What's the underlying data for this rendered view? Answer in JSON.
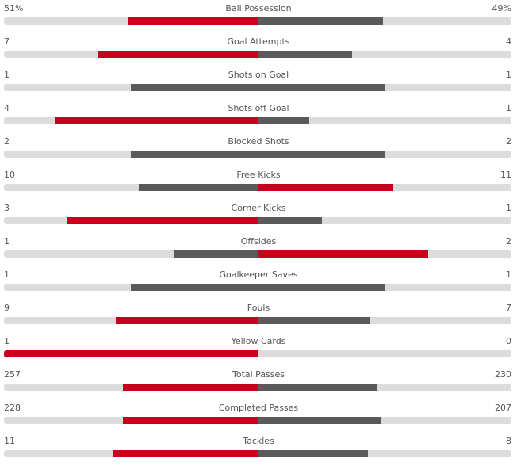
{
  "colors": {
    "winner": "#c8001e",
    "other": "#5a5a5a",
    "track": "#dcdcdc"
  },
  "stats": [
    {
      "name": "Ball Possession",
      "home": "51%",
      "away": "49%",
      "home_value": 51,
      "away_value": 49,
      "home_fill": 0.51,
      "away_fill": 0.49,
      "leader": "home"
    },
    {
      "name": "Goal Attempts",
      "home": "7",
      "away": "4",
      "home_value": 7,
      "away_value": 4,
      "home_fill": 0.63,
      "away_fill": 0.37,
      "leader": "home"
    },
    {
      "name": "Shots on Goal",
      "home": "1",
      "away": "1",
      "home_value": 1,
      "away_value": 1,
      "home_fill": 0.5,
      "away_fill": 0.5,
      "leader": "none"
    },
    {
      "name": "Shots off Goal",
      "home": "4",
      "away": "1",
      "home_value": 4,
      "away_value": 1,
      "home_fill": 0.8,
      "away_fill": 0.2,
      "leader": "home"
    },
    {
      "name": "Blocked Shots",
      "home": "2",
      "away": "2",
      "home_value": 2,
      "away_value": 2,
      "home_fill": 0.5,
      "away_fill": 0.5,
      "leader": "none"
    },
    {
      "name": "Free Kicks",
      "home": "10",
      "away": "11",
      "home_value": 10,
      "away_value": 11,
      "home_fill": 0.47,
      "away_fill": 0.53,
      "leader": "away"
    },
    {
      "name": "Corner Kicks",
      "home": "3",
      "away": "1",
      "home_value": 3,
      "away_value": 1,
      "home_fill": 0.75,
      "away_fill": 0.25,
      "leader": "home"
    },
    {
      "name": "Offsides",
      "home": "1",
      "away": "2",
      "home_value": 1,
      "away_value": 2,
      "home_fill": 0.33,
      "away_fill": 0.67,
      "leader": "away"
    },
    {
      "name": "Goalkeeper Saves",
      "home": "1",
      "away": "1",
      "home_value": 1,
      "away_value": 1,
      "home_fill": 0.5,
      "away_fill": 0.5,
      "leader": "none"
    },
    {
      "name": "Fouls",
      "home": "9",
      "away": "7",
      "home_value": 9,
      "away_value": 7,
      "home_fill": 0.56,
      "away_fill": 0.44,
      "leader": "home"
    },
    {
      "name": "Yellow Cards",
      "home": "1",
      "away": "0",
      "home_value": 1,
      "away_value": 0,
      "home_fill": 1.0,
      "away_fill": 0.0,
      "leader": "home"
    },
    {
      "name": "Total Passes",
      "home": "257",
      "away": "230",
      "home_value": 257,
      "away_value": 230,
      "home_fill": 0.53,
      "away_fill": 0.47,
      "leader": "home"
    },
    {
      "name": "Completed Passes",
      "home": "228",
      "away": "207",
      "home_value": 228,
      "away_value": 207,
      "home_fill": 0.53,
      "away_fill": 0.48,
      "leader": "home"
    },
    {
      "name": "Tackles",
      "home": "11",
      "away": "8",
      "home_value": 11,
      "away_value": 8,
      "home_fill": 0.57,
      "away_fill": 0.43,
      "leader": "home"
    }
  ]
}
